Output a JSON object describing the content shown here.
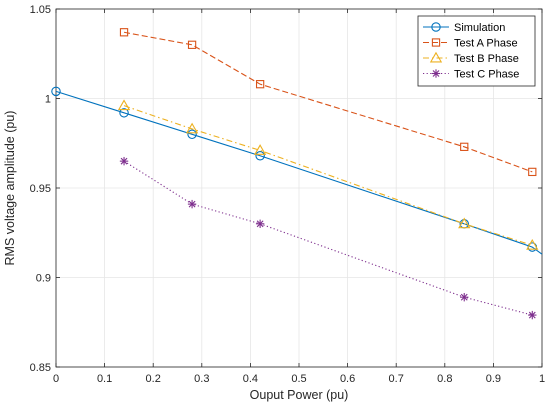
{
  "chart_data": {
    "type": "line",
    "title": "",
    "xlabel": "Ouput Power (pu)",
    "ylabel": "RMS voltage amplitude (pu)",
    "xlim": [
      0,
      1
    ],
    "ylim": [
      0.85,
      1.05
    ],
    "xticks": [
      0,
      0.1,
      0.2,
      0.3,
      0.4,
      0.5,
      0.6,
      0.7,
      0.8,
      0.9,
      1
    ],
    "yticks": [
      0.85,
      0.9,
      0.95,
      1,
      1.05
    ],
    "xtick_labels": [
      "0",
      "0.1",
      "0.2",
      "0.3",
      "0.4",
      "0.5",
      "0.6",
      "0.7",
      "0.8",
      "0.9",
      "1"
    ],
    "ytick_labels": [
      "0.85",
      "0.9",
      "0.95",
      "1",
      "1.05"
    ],
    "grid": true,
    "legend_position": "top-right",
    "series": [
      {
        "name": "Simulation",
        "color": "#0072BD",
        "line": "solid",
        "marker": "circle",
        "points": [
          {
            "x": 0,
            "y": 1.004
          },
          {
            "x": 0.14,
            "y": 0.992
          },
          {
            "x": 0.28,
            "y": 0.98
          },
          {
            "x": 0.42,
            "y": 0.968
          },
          {
            "x": 0.84,
            "y": 0.93
          },
          {
            "x": 0.98,
            "y": 0.917
          },
          {
            "x": 1,
            "y": 0.913
          }
        ],
        "marker_indices": [
          0,
          1,
          2,
          3,
          4,
          5
        ]
      },
      {
        "name": "Test A Phase",
        "color": "#D95319",
        "line": "dashed",
        "marker": "square",
        "points": [
          {
            "x": 0.14,
            "y": 1.037
          },
          {
            "x": 0.28,
            "y": 1.03
          },
          {
            "x": 0.42,
            "y": 1.008
          },
          {
            "x": 0.84,
            "y": 0.973
          },
          {
            "x": 0.98,
            "y": 0.959
          }
        ]
      },
      {
        "name": "Test B Phase",
        "color": "#EDB120",
        "line": "dashdot",
        "marker": "triangle",
        "points": [
          {
            "x": 0.14,
            "y": 0.996
          },
          {
            "x": 0.28,
            "y": 0.983
          },
          {
            "x": 0.42,
            "y": 0.971
          },
          {
            "x": 0.84,
            "y": 0.93
          },
          {
            "x": 0.98,
            "y": 0.918
          }
        ]
      },
      {
        "name": "Test C Phase",
        "color": "#7E2F8E",
        "line": "dotted",
        "marker": "asterisk",
        "points": [
          {
            "x": 0.14,
            "y": 0.965
          },
          {
            "x": 0.28,
            "y": 0.941
          },
          {
            "x": 0.42,
            "y": 0.93
          },
          {
            "x": 0.84,
            "y": 0.889
          },
          {
            "x": 0.98,
            "y": 0.879
          }
        ]
      }
    ]
  }
}
